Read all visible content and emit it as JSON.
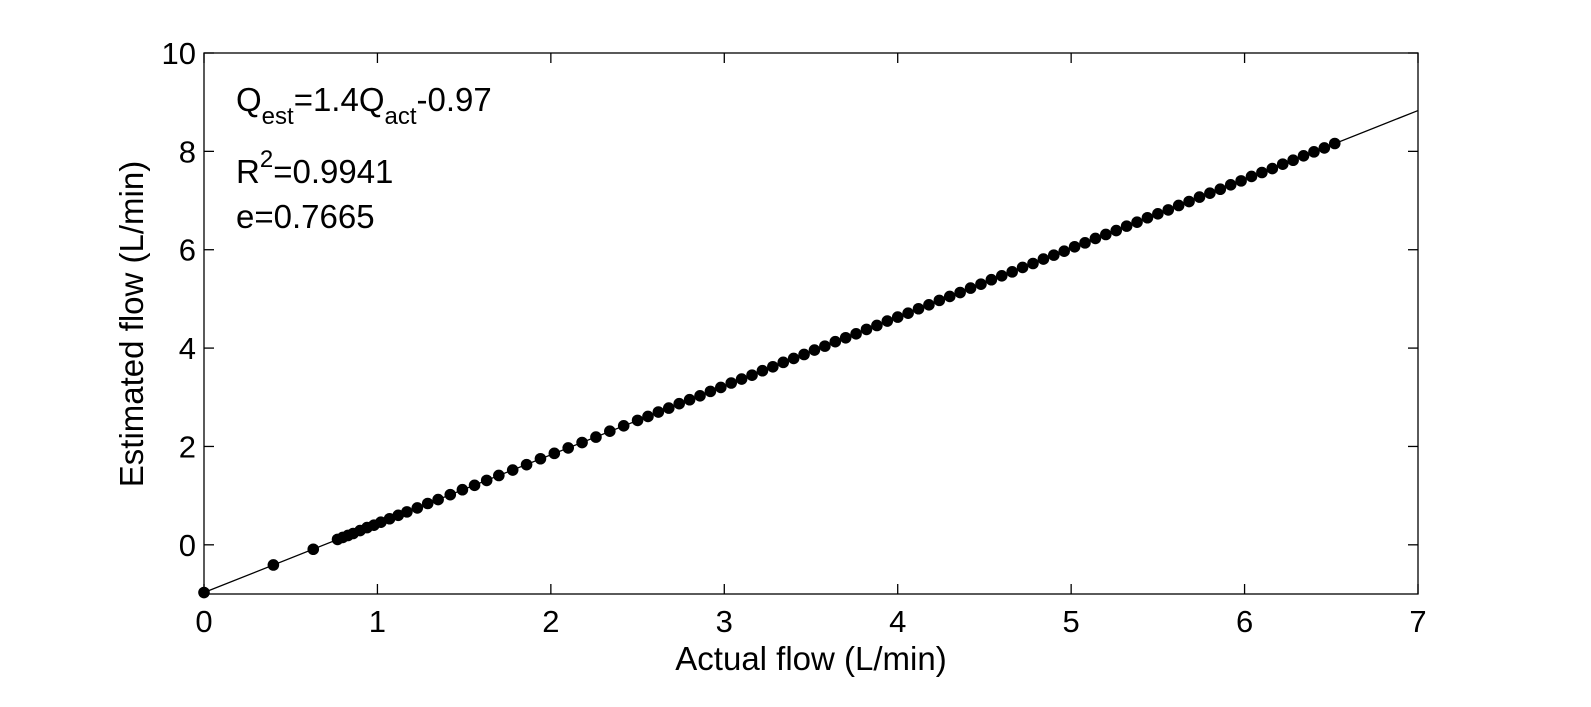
{
  "chart_data": {
    "type": "scatter",
    "title": "",
    "xlabel": "Actual flow (L/min)",
    "ylabel": "Estimated flow (L/min)",
    "xlim": [
      0,
      7
    ],
    "ylim": [
      -1,
      10
    ],
    "xticks": [
      "0",
      "1",
      "2",
      "3",
      "4",
      "5",
      "6",
      "7"
    ],
    "yticks": [
      "0",
      "2",
      "4",
      "6",
      "8",
      "10"
    ],
    "grid": false,
    "legend": "none",
    "colors": {
      "points": "#000000",
      "fit_line": "#000000",
      "axes": "#000000"
    },
    "fit": {
      "slope": 1.4,
      "intercept": -0.97,
      "x_range": [
        0,
        7
      ]
    },
    "annotations": {
      "equation": {
        "q": "Q",
        "est": "est",
        "eq": "=1.4Q",
        "act": "act",
        "rest": "-0.97"
      },
      "r2": {
        "r": "R",
        "sup": "2",
        "rest": "=0.9941"
      },
      "error": "e=0.7665"
    },
    "series": [
      {
        "x": [
          0,
          0.4,
          0.63,
          0.77,
          0.8,
          0.83,
          0.86,
          0.9,
          0.94,
          0.98,
          1.02,
          1.07,
          1.12,
          1.17,
          1.23,
          1.29,
          1.35,
          1.42,
          1.49,
          1.56,
          1.63,
          1.7,
          1.78,
          1.86,
          1.94,
          2.02,
          2.1,
          2.18,
          2.26,
          2.34,
          2.42,
          2.5,
          2.56,
          2.62,
          2.68,
          2.74,
          2.8,
          2.86,
          2.92,
          2.98,
          3.04,
          3.1,
          3.16,
          3.22,
          3.28,
          3.34,
          3.4,
          3.46,
          3.52,
          3.58,
          3.64,
          3.7,
          3.76,
          3.82,
          3.88,
          3.94,
          4.0,
          4.06,
          4.12,
          4.18,
          4.24,
          4.3,
          4.36,
          4.42,
          4.48,
          4.54,
          4.6,
          4.66,
          4.72,
          4.78,
          4.84,
          4.9,
          4.96,
          5.02,
          5.08,
          5.14,
          5.2,
          5.26,
          5.32,
          5.38,
          5.44,
          5.5,
          5.56,
          5.62,
          5.68,
          5.74,
          5.8,
          5.86,
          5.92,
          5.98,
          6.04,
          6.1,
          6.16,
          6.22,
          6.28,
          6.34,
          6.4,
          6.46,
          6.52
        ],
        "y": [
          -0.97,
          -0.41,
          -0.09,
          0.11,
          0.15,
          0.19,
          0.23,
          0.29,
          0.35,
          0.4,
          0.46,
          0.53,
          0.6,
          0.67,
          0.75,
          0.84,
          0.92,
          1.02,
          1.12,
          1.21,
          1.31,
          1.41,
          1.52,
          1.63,
          1.75,
          1.86,
          1.97,
          2.08,
          2.19,
          2.31,
          2.42,
          2.53,
          2.61,
          2.7,
          2.78,
          2.87,
          2.95,
          3.03,
          3.12,
          3.2,
          3.29,
          3.37,
          3.45,
          3.54,
          3.62,
          3.71,
          3.79,
          3.87,
          3.96,
          4.04,
          4.13,
          4.21,
          4.29,
          4.38,
          4.46,
          4.55,
          4.63,
          4.71,
          4.8,
          4.88,
          4.97,
          5.05,
          5.13,
          5.22,
          5.3,
          5.39,
          5.47,
          5.55,
          5.64,
          5.72,
          5.81,
          5.89,
          5.97,
          6.06,
          6.14,
          6.23,
          6.31,
          6.39,
          6.48,
          6.56,
          6.65,
          6.73,
          6.81,
          6.9,
          6.98,
          7.07,
          7.15,
          7.23,
          7.32,
          7.4,
          7.49,
          7.57,
          7.65,
          7.74,
          7.82,
          7.91,
          7.99,
          8.07,
          8.16
        ]
      }
    ]
  }
}
